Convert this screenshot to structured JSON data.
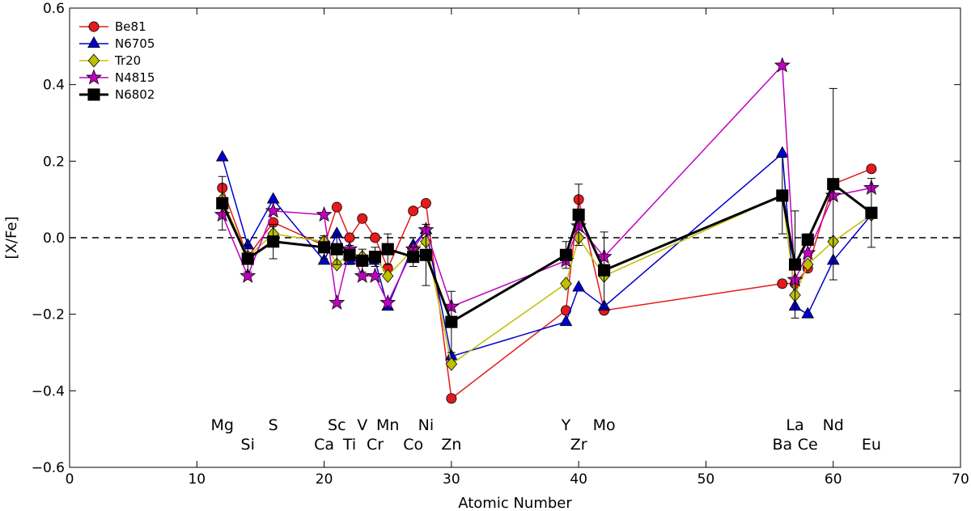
{
  "chart_data": {
    "type": "line",
    "title": "",
    "xlabel": "Atomic Number",
    "ylabel": "[X/Fe]",
    "xlim": [
      0,
      70
    ],
    "ylim": [
      -0.6,
      0.6
    ],
    "xticks": [
      0,
      10,
      20,
      30,
      40,
      50,
      60,
      70
    ],
    "yticks": [
      -0.6,
      -0.4,
      -0.2,
      0.0,
      0.2,
      0.4,
      0.6
    ],
    "ytick_labels": [
      "−0.6",
      "−0.4",
      "−0.2",
      "0.0",
      "0.2",
      "0.4",
      "0.6"
    ],
    "grid": false,
    "legend_position": "top-left",
    "reference_line": {
      "y": 0.0,
      "style": "dashed",
      "color": "#000000"
    },
    "element_labels": [
      {
        "label": "Mg",
        "x": 12,
        "row": 1
      },
      {
        "label": "Si",
        "x": 14,
        "row": 2
      },
      {
        "label": "S",
        "x": 16,
        "row": 1
      },
      {
        "label": "Ca",
        "x": 20,
        "row": 2
      },
      {
        "label": "Sc",
        "x": 21,
        "row": 1
      },
      {
        "label": "Ti",
        "x": 22,
        "row": 2
      },
      {
        "label": "V",
        "x": 23,
        "row": 1
      },
      {
        "label": "Cr",
        "x": 24,
        "row": 2
      },
      {
        "label": "Mn",
        "x": 25,
        "row": 1
      },
      {
        "label": "Co",
        "x": 27,
        "row": 2
      },
      {
        "label": "Ni",
        "x": 28,
        "row": 1
      },
      {
        "label": "Zn",
        "x": 30,
        "row": 2
      },
      {
        "label": "Y",
        "x": 39,
        "row": 1
      },
      {
        "label": "Zr",
        "x": 40,
        "row": 2
      },
      {
        "label": "Mo",
        "x": 42,
        "row": 1
      },
      {
        "label": "Ba",
        "x": 56,
        "row": 2
      },
      {
        "label": "La",
        "x": 57,
        "row": 1
      },
      {
        "label": "Ce",
        "x": 58,
        "row": 2
      },
      {
        "label": "Nd",
        "x": 60,
        "row": 1
      },
      {
        "label": "Eu",
        "x": 63,
        "row": 2
      }
    ],
    "series": [
      {
        "name": "Be81",
        "color": "#e41a1c",
        "marker": "circle",
        "line_width": 1.5,
        "points": [
          [
            12,
            0.13
          ],
          [
            14,
            -0.05
          ],
          [
            16,
            0.04
          ],
          [
            20,
            -0.02
          ],
          [
            21,
            0.08
          ],
          [
            22,
            0.0
          ],
          [
            23,
            0.05
          ],
          [
            24,
            0.0
          ],
          [
            25,
            -0.08
          ],
          [
            27,
            0.07
          ],
          [
            28,
            0.09
          ],
          [
            30,
            -0.42
          ],
          [
            39,
            -0.19
          ],
          [
            40,
            0.1
          ],
          [
            42,
            -0.19
          ],
          [
            56,
            -0.12
          ],
          [
            57,
            -0.12
          ],
          [
            58,
            -0.08
          ],
          [
            60,
            0.14
          ],
          [
            63,
            0.18
          ]
        ]
      },
      {
        "name": "N6705",
        "color": "#0000cc",
        "marker": "triangle",
        "line_width": 1.5,
        "points": [
          [
            12,
            0.21
          ],
          [
            14,
            -0.02
          ],
          [
            16,
            0.1
          ],
          [
            20,
            -0.06
          ],
          [
            21,
            0.01
          ],
          [
            22,
            -0.06
          ],
          [
            23,
            -0.06
          ],
          [
            24,
            -0.06
          ],
          [
            25,
            -0.18
          ],
          [
            27,
            -0.02
          ],
          [
            28,
            0.02
          ],
          [
            30,
            -0.31
          ],
          [
            39,
            -0.22
          ],
          [
            40,
            -0.13
          ],
          [
            42,
            -0.18
          ],
          [
            56,
            0.22
          ],
          [
            57,
            -0.18
          ],
          [
            58,
            -0.2
          ],
          [
            60,
            -0.06
          ],
          [
            63,
            0.06
          ]
        ]
      },
      {
        "name": "Tr20",
        "color": "#bfbf00",
        "marker": "diamond",
        "line_width": 1.5,
        "points": [
          [
            12,
            0.1
          ],
          [
            14,
            -0.05
          ],
          [
            16,
            0.01
          ],
          [
            20,
            -0.01
          ],
          [
            21,
            -0.07
          ],
          [
            22,
            -0.04
          ],
          [
            23,
            -0.05
          ],
          [
            24,
            -0.05
          ],
          [
            25,
            -0.1
          ],
          [
            27,
            -0.03
          ],
          [
            28,
            -0.01
          ],
          [
            30,
            -0.33
          ],
          [
            39,
            -0.12
          ],
          [
            40,
            0.0
          ],
          [
            42,
            -0.1
          ],
          [
            56,
            0.11
          ],
          [
            57,
            -0.15
          ],
          [
            58,
            -0.07
          ],
          [
            60,
            -0.01
          ],
          [
            63,
            0.06
          ]
        ]
      },
      {
        "name": "N4815",
        "color": "#c000c0",
        "marker": "star",
        "line_width": 1.5,
        "points": [
          [
            12,
            0.06
          ],
          [
            14,
            -0.1
          ],
          [
            16,
            0.07
          ],
          [
            20,
            0.06
          ],
          [
            21,
            -0.17
          ],
          [
            22,
            -0.03
          ],
          [
            23,
            -0.1
          ],
          [
            24,
            -0.1
          ],
          [
            25,
            -0.17
          ],
          [
            27,
            -0.03
          ],
          [
            28,
            0.02
          ],
          [
            30,
            -0.18
          ],
          [
            39,
            -0.06
          ],
          [
            40,
            0.03
          ],
          [
            42,
            -0.05
          ],
          [
            56,
            0.45
          ],
          [
            57,
            -0.11
          ],
          [
            58,
            -0.04
          ],
          [
            60,
            0.11
          ],
          [
            63,
            0.13
          ]
        ]
      },
      {
        "name": "N6802",
        "color": "#000000",
        "marker": "square",
        "line_width": 3,
        "points": [
          [
            12,
            0.09
          ],
          [
            14,
            -0.055
          ],
          [
            16,
            -0.01
          ],
          [
            20,
            -0.025
          ],
          [
            21,
            -0.03
          ],
          [
            22,
            -0.045
          ],
          [
            23,
            -0.06
          ],
          [
            24,
            -0.05
          ],
          [
            25,
            -0.03
          ],
          [
            27,
            -0.05
          ],
          [
            28,
            -0.045
          ],
          [
            30,
            -0.22
          ],
          [
            39,
            -0.045
          ],
          [
            40,
            0.06
          ],
          [
            42,
            -0.085
          ],
          [
            56,
            0.11
          ],
          [
            57,
            -0.07
          ],
          [
            58,
            -0.005
          ],
          [
            60,
            0.14
          ],
          [
            63,
            0.065
          ]
        ],
        "errors": [
          0.07,
          0.035,
          0.045,
          0.03,
          0.04,
          0.025,
          0.03,
          0.025,
          0.04,
          0.025,
          0.08,
          0.08,
          0.035,
          0.08,
          0.1,
          0.1,
          0.14,
          0.015,
          0.25,
          0.09
        ]
      }
    ]
  }
}
